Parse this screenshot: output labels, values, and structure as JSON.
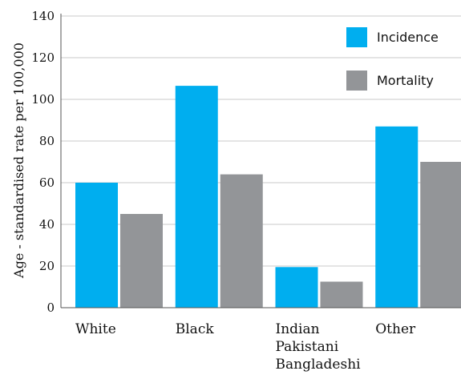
{
  "chart_data": {
    "type": "bar",
    "categories": [
      "White",
      "Black",
      "Indian\nPakistani\nBangladeshi",
      "Other"
    ],
    "series": [
      {
        "name": "Incidence",
        "color": "#00aeef",
        "values": [
          60,
          106.5,
          19.5,
          87
        ]
      },
      {
        "name": "Mortality",
        "color": "#939598",
        "values": [
          45,
          64,
          12.5,
          70
        ]
      }
    ],
    "ylabel": "Age - standardised rate per 100,000",
    "yticks": [
      0,
      20,
      40,
      60,
      80,
      100,
      120,
      140
    ],
    "ylim": [
      0,
      140
    ],
    "grid": true,
    "legend_position": "top-right"
  }
}
